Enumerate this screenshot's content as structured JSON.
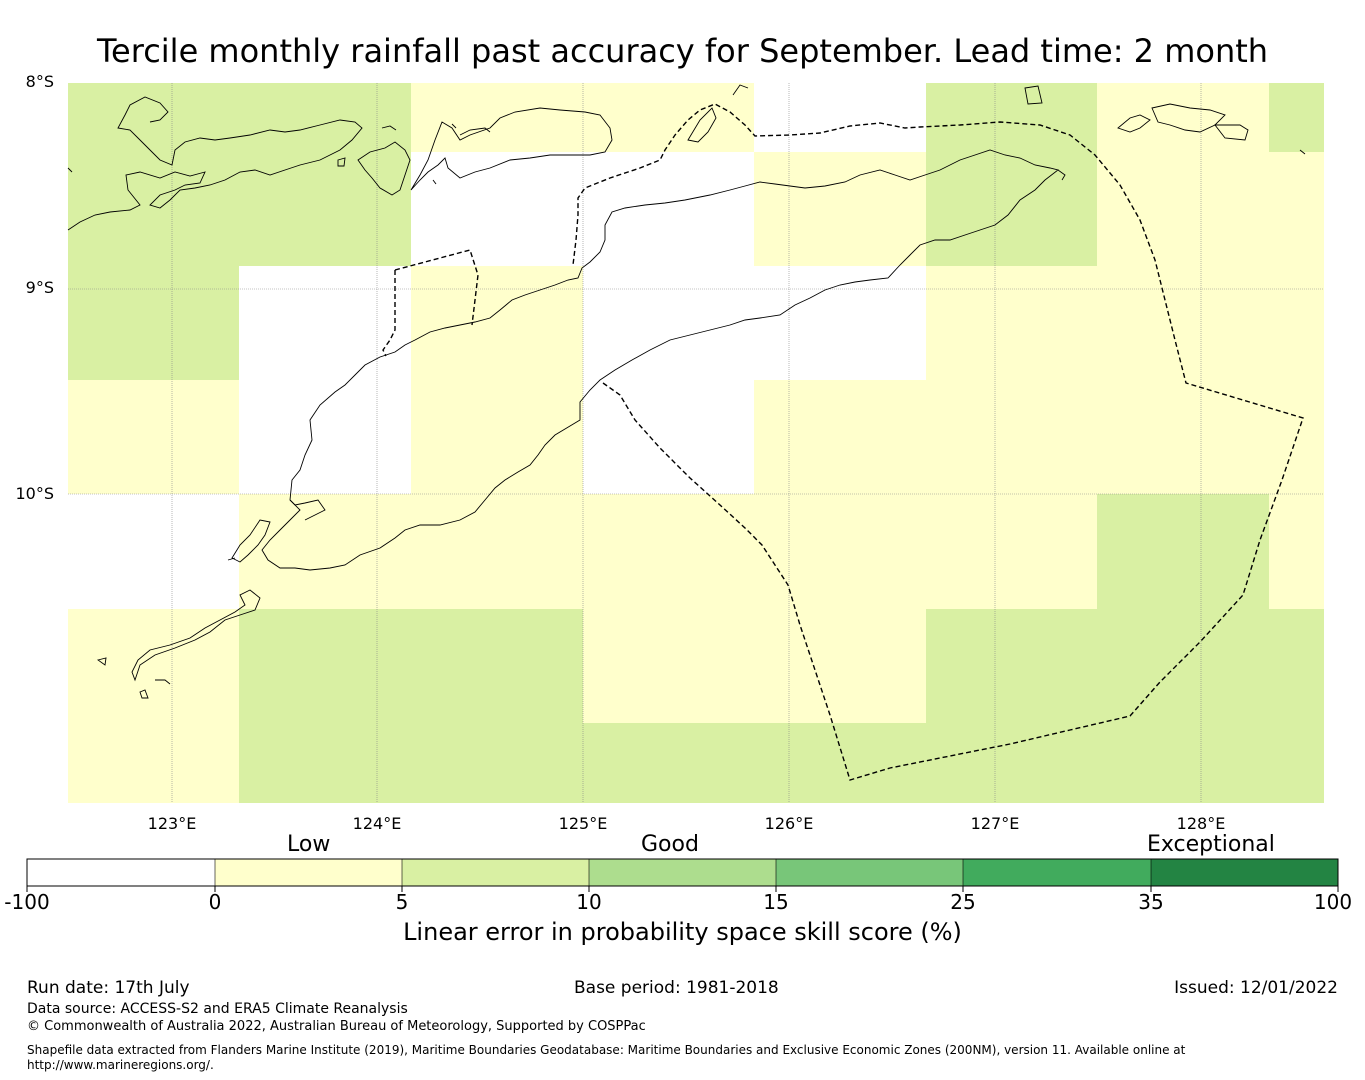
{
  "title": "Tercile monthly rainfall past accuracy for September. Lead time: 2 month",
  "map": {
    "lat_labels": [
      "8°S",
      "9°S",
      "10°S"
    ],
    "lon_labels": [
      "123°E",
      "124°E",
      "125°E",
      "126°E",
      "127°E",
      "128°E"
    ]
  },
  "legend": {
    "categories": [
      "Low",
      "Good",
      "Exceptional"
    ],
    "ticks": [
      "-100",
      "0",
      "5",
      "10",
      "15",
      "25",
      "35",
      "100"
    ],
    "colors": [
      "#ffffff",
      "#ffffcc",
      "#d9f0a3",
      "#addd8e",
      "#78c679",
      "#41ab5d",
      "#238443"
    ],
    "title": "Linear error in probability space skill score (%)"
  },
  "footer": {
    "run_date": "Run date: 17th July",
    "base_period": "Base period: 1981-2018",
    "issued": "Issued: 12/01/2022",
    "data_source": "Data source: ACCESS-S2 and ERA5 Climate Reanalysis",
    "copyright": "© Commonwealth of Australia 2022, Australian Bureau of Meteorology, Supported by COSPPac",
    "shapefile_1": "Shapefile data extracted from Flanders Marine Institute (2019), Maritime Boundaries Geodatabase: Maritime Boundaries and Exclusive Economic Zones (200NM), version 11. Available online at",
    "shapefile_2": "http://www.marineregions.org/."
  }
}
